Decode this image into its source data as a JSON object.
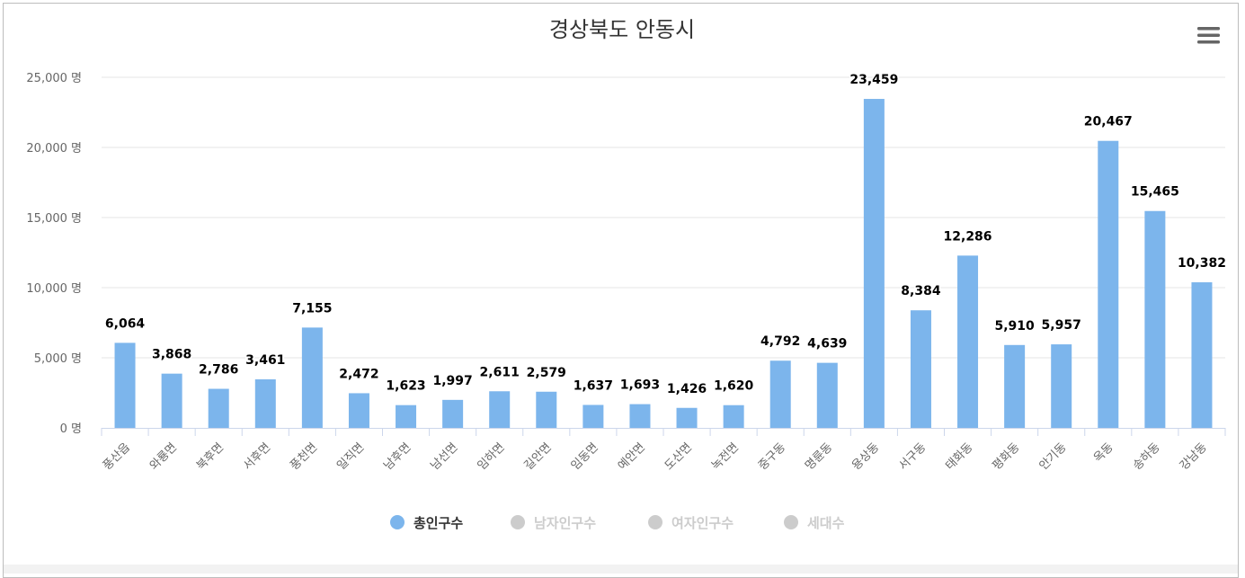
{
  "chart_data": {
    "type": "bar",
    "title": "경상북도 안동시",
    "categories": [
      "풍산읍",
      "와룡면",
      "북후면",
      "서후면",
      "풍천면",
      "일직면",
      "남후면",
      "남선면",
      "임하면",
      "길안면",
      "임동면",
      "예안면",
      "도산면",
      "녹전면",
      "중구동",
      "명륜동",
      "용상동",
      "서구동",
      "태화동",
      "평화동",
      "안기동",
      "옥동",
      "송하동",
      "강남동"
    ],
    "series": [
      {
        "name": "총인구수",
        "values": [
          6064,
          3868,
          2786,
          3461,
          7155,
          2472,
          1623,
          1997,
          2611,
          2579,
          1637,
          1693,
          1426,
          1620,
          4792,
          4639,
          23459,
          8384,
          12286,
          5910,
          5957,
          20467,
          15465,
          10382
        ],
        "color": "#7cb5ec",
        "visible": true
      }
    ],
    "value_labels": [
      "6,064",
      "3,868",
      "2,786",
      "3,461",
      "7,155",
      "2,472",
      "1,623",
      "1,997",
      "2,611",
      "2,579",
      "1,637",
      "1,693",
      "1,426",
      "1,620",
      "4,792",
      "4,639",
      "23,459",
      "8,384",
      "12,286",
      "5,910",
      "5,957",
      "20,467",
      "15,465",
      "10,382"
    ],
    "y_ticks": [
      0,
      5000,
      10000,
      15000,
      20000,
      25000
    ],
    "y_tick_labels": [
      "0 명",
      "5,000 명",
      "10,000 명",
      "15,000 명",
      "20,000 명",
      "25,000 명"
    ],
    "ylim": [
      0,
      25000
    ],
    "grid": true,
    "legend_position": "bottom-center",
    "legend": [
      {
        "name": "총인구수",
        "active": true,
        "color": "#7cb5ec"
      },
      {
        "name": "남자인구수",
        "active": false,
        "color": "#cccccc"
      },
      {
        "name": "여자인구수",
        "active": false,
        "color": "#cccccc"
      },
      {
        "name": "세대수",
        "active": false,
        "color": "#cccccc"
      }
    ]
  },
  "menu_icon": "hamburger-menu-icon"
}
